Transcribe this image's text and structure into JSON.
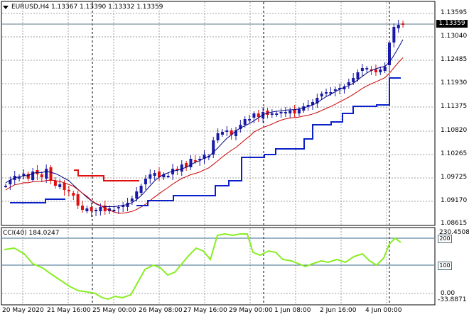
{
  "main": {
    "title": "EURUSD,H4  1.13367 1.13390 1.13332 1.13359",
    "price_tag": "1.13359",
    "y_labels": [
      "1.13595",
      "1.13040",
      "1.12485",
      "1.11930",
      "1.11375",
      "1.10820",
      "1.10265",
      "1.09725",
      "1.09170",
      "1.08615"
    ],
    "colors": {
      "bull": "#1a1aa8",
      "bear": "#e01010",
      "ma_fast": "#000080",
      "ma_slow": "#cc0000",
      "stop_up": "#0a20c8",
      "stop_down": "#e01010",
      "grid": "#a0a0a0"
    }
  },
  "cci": {
    "title": "CCI(40) 184.0247",
    "level_200": "200",
    "level_100": "100",
    "y_labels": [
      "230.4508",
      "0.00",
      "-33.8871"
    ],
    "color": "#88ee22"
  },
  "x_labels": [
    "20 May 2020",
    "21 May 16:00",
    "25 May 00:00",
    "26 May 08:00",
    "27 May 16:00",
    "29 May 00:00",
    "1 Jun 08:00",
    "2 Jun 16:00",
    "4 Jun 00:00"
  ]
}
